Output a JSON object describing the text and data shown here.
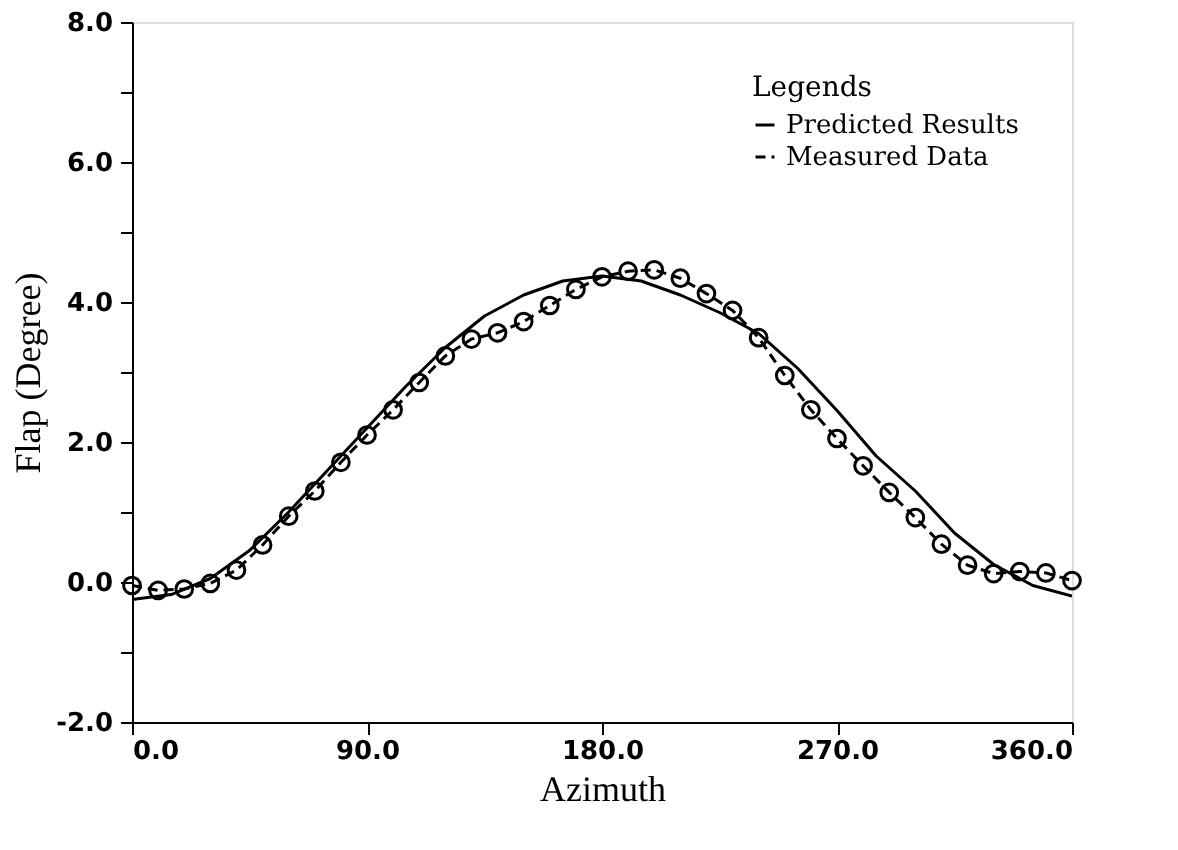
{
  "chart_data": {
    "type": "line",
    "xlabel": "Azimuth",
    "ylabel": "Flap (Degree)",
    "legend_title": "Legends",
    "legend": "top right",
    "grid": false,
    "xlim": [
      0,
      360
    ],
    "ylim": [
      -2,
      8
    ],
    "xticks": [
      {
        "value": 0,
        "label": "0.0"
      },
      {
        "value": 90,
        "label": "90.0"
      },
      {
        "value": 180,
        "label": "180.0"
      },
      {
        "value": 270,
        "label": "270.0"
      },
      {
        "value": 360,
        "label": "360.0"
      }
    ],
    "yticks": [
      {
        "value": -2,
        "label": "-2.0"
      },
      {
        "value": -1,
        "label": null
      },
      {
        "value": 0,
        "label": "0.0"
      },
      {
        "value": 1,
        "label": null
      },
      {
        "value": 2,
        "label": "2.0"
      },
      {
        "value": 3,
        "label": null
      },
      {
        "value": 4,
        "label": "4.0"
      },
      {
        "value": 5,
        "label": null
      },
      {
        "value": 6,
        "label": "6.0"
      },
      {
        "value": 7,
        "label": null
      },
      {
        "value": 8,
        "label": "8.0"
      }
    ],
    "series": [
      {
        "name": "Predicted Results",
        "color": "#000000",
        "line_style": "solid",
        "marker": "none",
        "x": [
          0,
          15,
          30,
          45,
          60,
          75,
          90,
          105,
          120,
          135,
          150,
          165,
          180,
          195,
          210,
          225,
          240,
          255,
          270,
          285,
          300,
          315,
          330,
          345,
          360
        ],
        "values": [
          -0.25,
          -0.18,
          0.05,
          0.45,
          1.0,
          1.6,
          2.2,
          2.8,
          3.35,
          3.8,
          4.1,
          4.3,
          4.37,
          4.3,
          4.1,
          3.85,
          3.55,
          3.05,
          2.45,
          1.8,
          1.3,
          0.7,
          0.25,
          -0.05,
          -0.2
        ]
      },
      {
        "name": "Measured Data",
        "color": "#000000",
        "line_style": "dashed",
        "marker": "circle",
        "x": [
          0,
          10,
          20,
          30,
          40,
          50,
          60,
          70,
          80,
          90,
          100,
          110,
          120,
          130,
          140,
          150,
          160,
          170,
          180,
          190,
          200,
          210,
          220,
          230,
          240,
          250,
          260,
          270,
          280,
          290,
          300,
          310,
          320,
          330,
          340,
          350,
          360
        ],
        "values": [
          -0.05,
          -0.12,
          -0.1,
          -0.02,
          0.17,
          0.53,
          0.94,
          1.3,
          1.71,
          2.1,
          2.46,
          2.85,
          3.23,
          3.47,
          3.56,
          3.72,
          3.95,
          4.18,
          4.36,
          4.44,
          4.46,
          4.34,
          4.12,
          3.88,
          3.49,
          2.95,
          2.46,
          2.05,
          1.66,
          1.28,
          0.92,
          0.54,
          0.24,
          0.12,
          0.15,
          0.13,
          0.02
        ]
      }
    ]
  }
}
